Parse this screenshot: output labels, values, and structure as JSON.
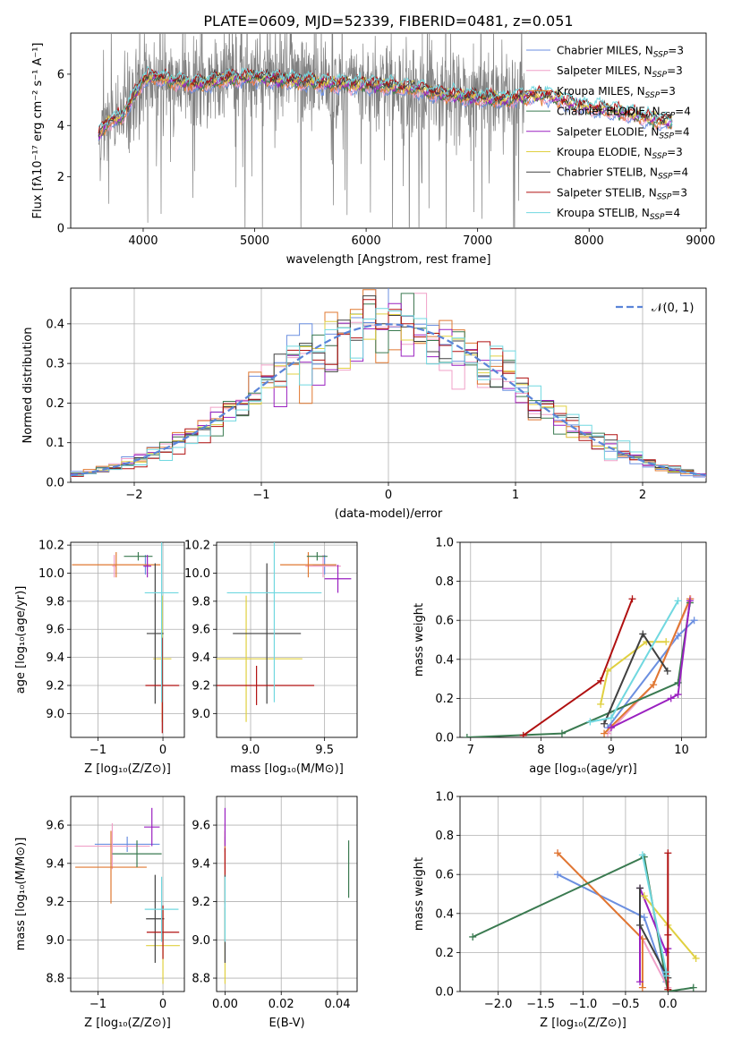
{
  "figure": {
    "title": "PLATE=0609, MJD=52339, FIBERID=0481, z=0.051"
  },
  "palette": [
    "#6b8fe0",
    "#f0a0c8",
    "#e07830",
    "#3a7a50",
    "#9a20c0",
    "#e0d040",
    "#404040",
    "#b01010",
    "#70d8e0"
  ],
  "chart_data": [
    {
      "id": "spectrum",
      "type": "line",
      "xlabel": "wavelength [Angstrom, rest frame]",
      "ylabel": "Flux [fλ10⁻¹⁷ erg cm⁻² s⁻¹ A⁻¹]",
      "xlim": [
        3350,
        9050
      ],
      "ylim": [
        0,
        7.6
      ],
      "xticks": [
        4000,
        5000,
        6000,
        7000,
        8000,
        9000
      ],
      "yticks": [
        0,
        2,
        4,
        6
      ],
      "grid": false,
      "legend_position": "top-right",
      "series": [
        {
          "name": "Chabrier MILES, N_SSP=3"
        },
        {
          "name": "Salpeter MILES, N_SSP=3"
        },
        {
          "name": "Kroupa MILES, N_SSP=3"
        },
        {
          "name": "Chabrier ELODIE, N_SSP=4"
        },
        {
          "name": "Salpeter ELODIE, N_SSP=4"
        },
        {
          "name": "Kroupa ELODIE, N_SSP=3"
        },
        {
          "name": "Chabrier STELIB, N_SSP=4"
        },
        {
          "name": "Salpeter STELIB, N_SSP=3"
        },
        {
          "name": "Kroupa STELIB, N_SSP=4"
        }
      ],
      "continuum": {
        "x": [
          3600,
          3700,
          3800,
          3900,
          4000,
          4100,
          4300,
          4500,
          4700,
          5000,
          5200,
          5500,
          5800,
          6000,
          6300,
          6500,
          6700,
          7000,
          7200,
          7400,
          7600,
          7800,
          8000,
          8200,
          8400,
          8600,
          8750
        ],
        "y": [
          3.6,
          4.2,
          4.3,
          5.0,
          5.8,
          5.9,
          5.7,
          5.6,
          5.8,
          5.9,
          5.8,
          5.7,
          5.6,
          5.6,
          5.5,
          5.4,
          5.2,
          5.1,
          5.0,
          5.1,
          5.2,
          4.9,
          4.7,
          4.6,
          4.4,
          4.2,
          4.1
        ]
      },
      "data_envelope": {
        "x_start": 3600,
        "x_end": 7420
      }
    },
    {
      "id": "residuals",
      "type": "line",
      "xlabel": "(data-model)/error",
      "ylabel": "Normed distribution",
      "xlim": [
        -2.5,
        2.5
      ],
      "ylim": [
        0,
        0.49
      ],
      "xticks": [
        -2,
        -1,
        0,
        1,
        2
      ],
      "yticks": [
        0.0,
        0.1,
        0.2,
        0.3,
        0.4
      ],
      "grid": true,
      "legend_position": "top-right",
      "reference": {
        "name": "𝒩(0, 1)",
        "mean": 0,
        "sigma": 1
      },
      "histogram": {
        "bin_width": 0.1,
        "series_count": 9
      }
    },
    {
      "id": "age-vs-Z",
      "type": "scatter",
      "xlabel": "Z [log₁₀(Z/Z⊙)]",
      "ylabel": "age  [log₁₀(age/yr)]",
      "xlim": [
        -1.42,
        0.33
      ],
      "ylim": [
        8.83,
        10.22
      ],
      "xticks": [
        -1,
        0
      ],
      "yticks": [
        9.0,
        9.2,
        9.4,
        9.6,
        9.8,
        10.0,
        10.2
      ],
      "grid": true,
      "points": [
        {
          "series": 0,
          "x": -0.27,
          "y": 10.06,
          "xerr": 0.05,
          "yerr": 0.07
        },
        {
          "series": 1,
          "x": -0.75,
          "y": 10.05,
          "xerr": 0.03,
          "yerr": 0.08
        },
        {
          "series": 2,
          "x": -0.72,
          "y": 10.06,
          "xerr": 0.68,
          "yerr": 0.09
        },
        {
          "series": 3,
          "x": -0.38,
          "y": 10.12,
          "xerr": 0.22,
          "yerr": 0.03
        },
        {
          "series": 4,
          "x": -0.24,
          "y": 10.05,
          "xerr": 0.06,
          "yerr": 0.08
        },
        {
          "series": 5,
          "x": -0.01,
          "y": 9.39,
          "xerr": 0.14,
          "yerr": 0.45
        },
        {
          "series": 6,
          "x": -0.12,
          "y": 9.57,
          "xerr": 0.13,
          "yerr": 0.5
        },
        {
          "series": 7,
          "x": -0.01,
          "y": 9.2,
          "xerr": 0.26,
          "yerr": 0.34
        },
        {
          "series": 8,
          "x": -0.02,
          "y": 9.86,
          "xerr": 0.26,
          "yerr": 0.78
        }
      ]
    },
    {
      "id": "age-vs-mass",
      "type": "scatter",
      "xlabel": "mass [log₁₀(M/M⊙)]",
      "ylabel": "",
      "xlim": [
        8.77,
        9.72
      ],
      "ylim": [
        8.83,
        10.22
      ],
      "xticks": [
        9.0,
        9.5
      ],
      "yticks": [
        9.0,
        9.2,
        9.4,
        9.6,
        9.8,
        10.0,
        10.2
      ],
      "grid": true,
      "points": [
        {
          "series": 0,
          "x": 9.5,
          "y": 10.06,
          "xerr": 0.08,
          "yerr": 0.07
        },
        {
          "series": 1,
          "x": 9.49,
          "y": 10.05,
          "xerr": 0.12,
          "yerr": 0.08
        },
        {
          "series": 2,
          "x": 9.39,
          "y": 10.06,
          "xerr": 0.19,
          "yerr": 0.09
        },
        {
          "series": 3,
          "x": 9.45,
          "y": 10.12,
          "xerr": 0.07,
          "yerr": 0.03
        },
        {
          "series": 4,
          "x": 9.59,
          "y": 9.96,
          "xerr": 0.09,
          "yerr": 0.1
        },
        {
          "series": 5,
          "x": 8.97,
          "y": 9.39,
          "xerr": 0.38,
          "yerr": 0.45
        },
        {
          "series": 6,
          "x": 9.11,
          "y": 9.57,
          "xerr": 0.23,
          "yerr": 0.5
        },
        {
          "series": 7,
          "x": 9.04,
          "y": 9.2,
          "xerr": 0.39,
          "yerr": 0.14
        },
        {
          "series": 8,
          "x": 9.16,
          "y": 9.86,
          "xerr": 0.32,
          "yerr": 0.78
        }
      ]
    },
    {
      "id": "massweight-vs-age",
      "type": "line",
      "xlabel": "age  [log₁₀(age/yr)]",
      "ylabel": "mass weight",
      "xlim": [
        6.85,
        10.35
      ],
      "ylim": [
        0,
        1.0
      ],
      "xticks": [
        7,
        8,
        9,
        10
      ],
      "yticks": [
        0.0,
        0.2,
        0.4,
        0.6,
        0.8,
        1.0
      ],
      "grid": true,
      "series": [
        {
          "series": 0,
          "x": [
            8.95,
            9.95,
            10.18
          ],
          "y": [
            0.05,
            0.52,
            0.6
          ]
        },
        {
          "series": 1,
          "x": [
            8.95,
            9.6,
            10.13
          ],
          "y": [
            0.02,
            0.27,
            0.71
          ]
        },
        {
          "series": 2,
          "x": [
            8.9,
            9.6,
            10.12
          ],
          "y": [
            0.02,
            0.27,
            0.71
          ]
        },
        {
          "series": 3,
          "x": [
            6.95,
            8.3,
            9.95,
            10.12
          ],
          "y": [
            0.0,
            0.02,
            0.28,
            0.69
          ]
        },
        {
          "series": 4,
          "x": [
            9.0,
            9.85,
            9.95,
            10.12
          ],
          "y": [
            0.05,
            0.2,
            0.22,
            0.7
          ]
        },
        {
          "series": 5,
          "x": [
            8.85,
            8.95,
            9.5,
            9.78
          ],
          "y": [
            0.17,
            0.34,
            0.49,
            0.49
          ]
        },
        {
          "series": 6,
          "x": [
            8.9,
            9.45,
            9.8
          ],
          "y": [
            0.07,
            0.53,
            0.34
          ]
        },
        {
          "series": 7,
          "x": [
            7.75,
            8.85,
            9.3
          ],
          "y": [
            0.01,
            0.29,
            0.71
          ]
        },
        {
          "series": 8,
          "x": [
            8.7,
            9.0,
            9.95
          ],
          "y": [
            0.08,
            0.1,
            0.7
          ]
        }
      ]
    },
    {
      "id": "mass-vs-Z",
      "type": "scatter",
      "xlabel": "Z [log₁₀(Z/Z⊙)]",
      "ylabel": "mass [log₁₀(M/M⊙)]",
      "xlim": [
        -1.42,
        0.33
      ],
      "ylim": [
        8.73,
        9.75
      ],
      "xticks": [
        -1,
        0
      ],
      "yticks": [
        8.8,
        9.0,
        9.2,
        9.4,
        9.6
      ],
      "grid": true,
      "points": [
        {
          "series": 0,
          "x": -0.55,
          "y": 9.5,
          "xerr": 0.5,
          "yerr": 0.04
        },
        {
          "series": 1,
          "x": -0.78,
          "y": 9.49,
          "xerr": 0.58,
          "yerr": 0.12
        },
        {
          "series": 2,
          "x": -0.8,
          "y": 9.38,
          "xerr": 0.55,
          "yerr": 0.19
        },
        {
          "series": 3,
          "x": -0.4,
          "y": 9.45,
          "xerr": 0.38,
          "yerr": 0.07
        },
        {
          "series": 4,
          "x": -0.17,
          "y": 9.59,
          "xerr": 0.12,
          "yerr": 0.1
        },
        {
          "series": 5,
          "x": 0.0,
          "y": 8.97,
          "xerr": 0.26,
          "yerr": 0.2
        },
        {
          "series": 6,
          "x": -0.12,
          "y": 9.11,
          "xerr": 0.14,
          "yerr": 0.23
        },
        {
          "series": 7,
          "x": 0.0,
          "y": 9.04,
          "xerr": 0.25,
          "yerr": 0.14
        },
        {
          "series": 8,
          "x": -0.02,
          "y": 9.16,
          "xerr": 0.26,
          "yerr": 0.17
        }
      ]
    },
    {
      "id": "mass-vs-ebv",
      "type": "scatter",
      "xlabel": "E(B-V)",
      "ylabel": "",
      "xlim": [
        -0.003,
        0.047
      ],
      "ylim": [
        8.73,
        9.75
      ],
      "xticks": [
        0.0,
        0.02,
        0.04
      ],
      "yticks": [
        8.8,
        9.0,
        9.2,
        9.4,
        9.6
      ],
      "grid": true,
      "points": [
        {
          "series": 0,
          "x": 0.0,
          "y": 9.5,
          "xerr": 0,
          "yerr": 0.04
        },
        {
          "series": 1,
          "x": 0.0,
          "y": 9.49,
          "xerr": 0,
          "yerr": 0.12
        },
        {
          "series": 2,
          "x": 0.0,
          "y": 9.38,
          "xerr": 0,
          "yerr": 0.19
        },
        {
          "series": 3,
          "x": 0.044,
          "y": 9.37,
          "xerr": 0,
          "yerr": 0.15
        },
        {
          "series": 4,
          "x": 0.0,
          "y": 9.59,
          "xerr": 0,
          "yerr": 0.1
        },
        {
          "series": 5,
          "x": 0.0,
          "y": 8.97,
          "xerr": 0,
          "yerr": 0.2
        },
        {
          "series": 6,
          "x": 0.0,
          "y": 9.11,
          "xerr": 0,
          "yerr": 0.23
        },
        {
          "series": 7,
          "x": 0.0,
          "y": 9.41,
          "xerr": 0,
          "yerr": 0.07
        },
        {
          "series": 8,
          "x": 0.0,
          "y": 9.16,
          "xerr": 0,
          "yerr": 0.17
        }
      ]
    },
    {
      "id": "massweight-vs-Z",
      "type": "line",
      "xlabel": "Z [log₁₀(Z/Z⊙)]",
      "ylabel": "mass weight",
      "xlim": [
        -2.45,
        0.45
      ],
      "ylim": [
        0,
        1.0
      ],
      "xticks": [
        -2.0,
        -1.5,
        -1.0,
        -0.5,
        0.0
      ],
      "yticks": [
        0.0,
        0.2,
        0.4,
        0.6,
        0.8,
        1.0
      ],
      "grid": true,
      "series": [
        {
          "series": 0,
          "x": [
            -1.3,
            -0.28,
            -0.02
          ],
          "y": [
            0.6,
            0.38,
            0.05
          ]
        },
        {
          "series": 1,
          "x": [
            -1.3,
            -0.3,
            0.0
          ],
          "y": [
            0.71,
            0.27,
            0.02
          ]
        },
        {
          "series": 2,
          "x": [
            -1.3,
            -0.3,
            -0.3
          ],
          "y": [
            0.71,
            0.27,
            0.02
          ]
        },
        {
          "series": 3,
          "x": [
            -2.3,
            -0.28,
            0.0,
            0.3
          ],
          "y": [
            0.28,
            0.69,
            0.0,
            0.02
          ]
        },
        {
          "series": 4,
          "x": [
            -0.33,
            -0.33,
            -0.02,
            0.0
          ],
          "y": [
            0.05,
            0.53,
            0.2,
            0.22
          ]
        },
        {
          "series": 5,
          "x": [
            -0.28,
            0.0,
            0.33
          ],
          "y": [
            0.49,
            0.34,
            0.17
          ]
        },
        {
          "series": 6,
          "x": [
            -0.33,
            -0.33,
            0.0
          ],
          "y": [
            0.53,
            0.34,
            0.07
          ]
        },
        {
          "series": 7,
          "x": [
            0.0,
            0.0,
            0.0
          ],
          "y": [
            0.71,
            0.29,
            0.01
          ]
        },
        {
          "series": 8,
          "x": [
            -0.3,
            -0.02,
            -0.02
          ],
          "y": [
            0.7,
            0.1,
            0.08
          ]
        }
      ]
    }
  ]
}
